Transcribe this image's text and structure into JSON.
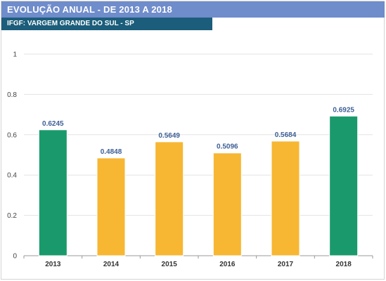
{
  "header": {
    "title": "EVOLUÇÃO ANUAL - DE 2013 A 2018",
    "subtitle": "IFGF: VARGEM GRANDE DO SUL - SP"
  },
  "colors": {
    "title_bg": "#6f8ccb",
    "subtitle_bg": "#1b5d7a",
    "highlight": "#1a9a6c",
    "normal": "#f7b733",
    "label": "#3d5f95"
  },
  "chart_data": {
    "type": "bar",
    "categories": [
      "2013",
      "2014",
      "2015",
      "2016",
      "2017",
      "2018"
    ],
    "values": [
      0.6245,
      0.4848,
      0.5649,
      0.5096,
      0.5684,
      0.6925
    ],
    "data_labels": [
      "0.6245",
      "0.4848",
      "0.5649",
      "0.5096",
      "0.5684",
      "0.6925"
    ],
    "bar_colors": [
      "#1a9a6c",
      "#f7b733",
      "#f7b733",
      "#f7b733",
      "#f7b733",
      "#1a9a6c"
    ],
    "ylim": [
      0,
      1
    ],
    "yticks": [
      0,
      0.2,
      0.4,
      0.6,
      0.8,
      1
    ],
    "ytick_labels": [
      "0",
      "0.2",
      "0.4",
      "0.6",
      "0.8",
      "1"
    ],
    "grid": true,
    "legend": "none"
  }
}
